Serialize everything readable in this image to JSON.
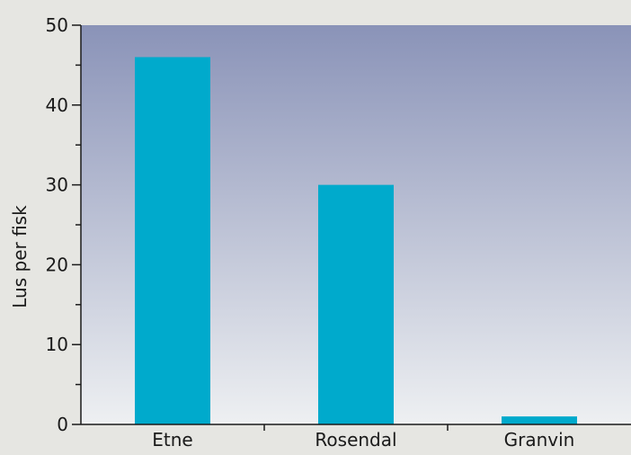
{
  "chart_data": {
    "type": "bar",
    "categories": [
      "Etne",
      "Rosendal",
      "Granvin"
    ],
    "values": [
      46,
      30,
      1
    ],
    "title": "",
    "xlabel": "",
    "ylabel": "Lus per fisk",
    "ylim": [
      0,
      50
    ],
    "yticks": [
      0,
      10,
      20,
      30,
      40,
      50
    ],
    "minor_ytick_step": 5,
    "grid": false,
    "legend": "none",
    "colors": {
      "bar": "#00aacc",
      "plot_bg_top": "#8a93b8",
      "plot_bg_bottom": "#eef0f2",
      "page_bg": "#e6e6e2",
      "axis": "#1a1a1a"
    }
  }
}
